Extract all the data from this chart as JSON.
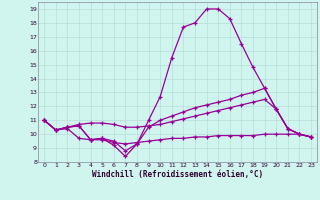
{
  "xlabel": "Windchill (Refroidissement éolien,°C)",
  "background_color": "#cff5ee",
  "grid_color": "#b8ddd8",
  "line_color": "#990099",
  "x_hours": [
    0,
    1,
    2,
    3,
    4,
    5,
    6,
    7,
    8,
    9,
    10,
    11,
    12,
    13,
    14,
    15,
    16,
    17,
    18,
    19,
    20,
    21,
    22,
    23
  ],
  "line1": [
    11.0,
    10.3,
    10.5,
    10.6,
    9.6,
    9.7,
    9.2,
    8.4,
    9.3,
    11.0,
    12.7,
    15.5,
    17.7,
    18.0,
    19.0,
    19.0,
    18.3,
    16.5,
    14.8,
    13.3,
    11.8,
    10.4,
    10.0,
    9.8
  ],
  "line2": [
    11.0,
    10.3,
    10.5,
    10.6,
    9.6,
    9.7,
    9.5,
    8.8,
    9.3,
    10.5,
    11.0,
    11.3,
    11.6,
    11.9,
    12.1,
    12.3,
    12.5,
    12.8,
    13.0,
    13.3,
    11.8,
    10.4,
    10.0,
    9.8
  ],
  "line3": [
    11.0,
    10.3,
    10.5,
    10.7,
    10.8,
    10.8,
    10.7,
    10.5,
    10.5,
    10.6,
    10.7,
    10.9,
    11.1,
    11.3,
    11.5,
    11.7,
    11.9,
    12.1,
    12.3,
    12.5,
    11.8,
    10.4,
    10.0,
    9.8
  ],
  "line4": [
    11.0,
    10.3,
    10.4,
    9.7,
    9.6,
    9.6,
    9.4,
    9.3,
    9.4,
    9.5,
    9.6,
    9.7,
    9.7,
    9.8,
    9.8,
    9.9,
    9.9,
    9.9,
    9.9,
    10.0,
    10.0,
    10.0,
    10.0,
    9.8
  ],
  "ylim": [
    8,
    19.5
  ],
  "yticks": [
    8,
    9,
    10,
    11,
    12,
    13,
    14,
    15,
    16,
    17,
    18,
    19
  ],
  "xticks": [
    0,
    1,
    2,
    3,
    4,
    5,
    6,
    7,
    8,
    9,
    10,
    11,
    12,
    13,
    14,
    15,
    16,
    17,
    18,
    19,
    20,
    21,
    22,
    23
  ]
}
